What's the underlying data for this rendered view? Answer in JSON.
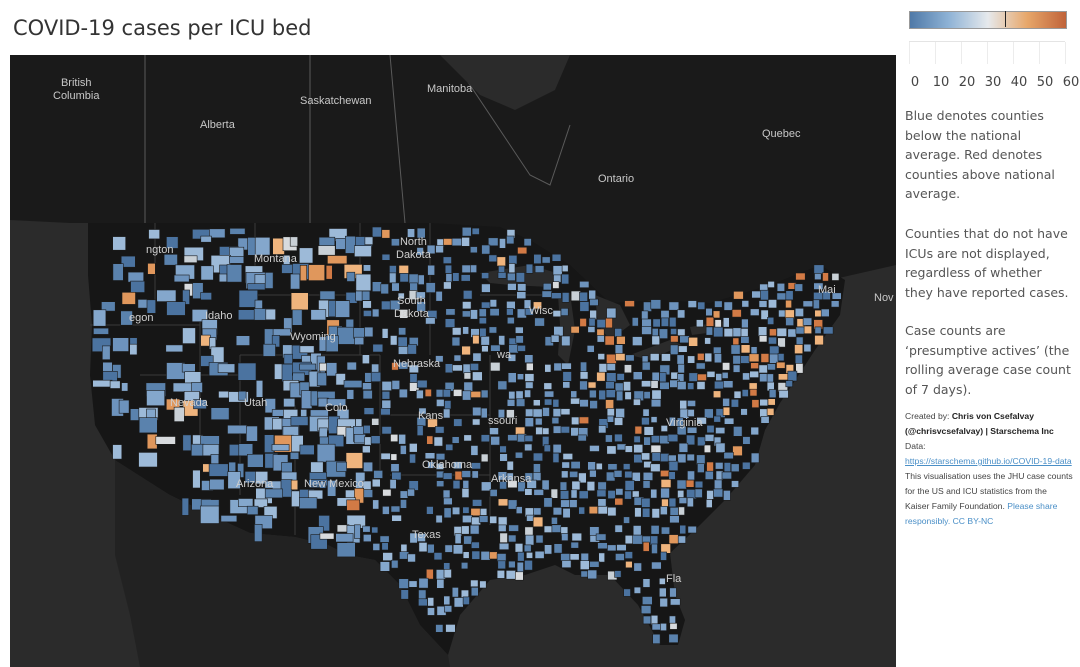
{
  "title": "COVID-19 cases per ICU bed",
  "legend": {
    "colors": [
      "#4f79a7",
      "#8fb3d6",
      "#e6e9ec",
      "#e7a76a",
      "#c0633a"
    ],
    "range": [
      0,
      60
    ],
    "ticks": [
      "0",
      "10",
      "20",
      "30",
      "40",
      "50",
      "60"
    ],
    "marker_value": 37
  },
  "notes": {
    "colors": "Blue denotes counties below the national average. Red denotes counties above national average.",
    "no_icu": "Counties that do not have ICUs are not displayed, regardless of whether they have reported cases.",
    "case_counts": "Case counts are ‘presumptive actives’ (the rolling average case count of 7 days)."
  },
  "credits": {
    "created_label": "Created by:",
    "author": "Chris von Csefalvay (@chrisvcsefalvay) | Starschema Inc",
    "data_label": "Data:",
    "data_url": "https://starschema.github.io/COVID-19-data",
    "description": "This visualisation uses the JHU case counts for the US and ICU statistics from the Kaiser Family Foundation.",
    "share": "Please share responsibly. CC BY-NC"
  },
  "map": {
    "background": "#2b2b2b",
    "land": "#161616",
    "labels": {
      "british_columbia": "British\nColumbia",
      "alberta": "Alberta",
      "saskatchewan": "Saskatchewan",
      "manitoba": "Manitoba",
      "ontario": "Ontario",
      "quebec": "Quebec",
      "nova": "Nov",
      "washington": "ngton",
      "montana": "Montana",
      "north_dakota": "North\nDakota",
      "oregon": "egon",
      "idaho": "Idaho",
      "south_dakota": "South\nDakota",
      "wyoming": "Wyoming",
      "nebraska": "Nebraska",
      "nevada": "Nevada",
      "utah": "Utah",
      "colorado": "Colo",
      "kansas": "Kans",
      "missouri": "ssouri",
      "iowa": "wa",
      "wisconsin": "Wisc",
      "arizona": "Arizona",
      "new_mexico": "New Mexico",
      "oklahoma": "Oklahoma",
      "arkansas": "Arkansa",
      "texas": "Texas",
      "virginia": "Virginia",
      "florida": "Fla",
      "maine": "Mai"
    }
  }
}
